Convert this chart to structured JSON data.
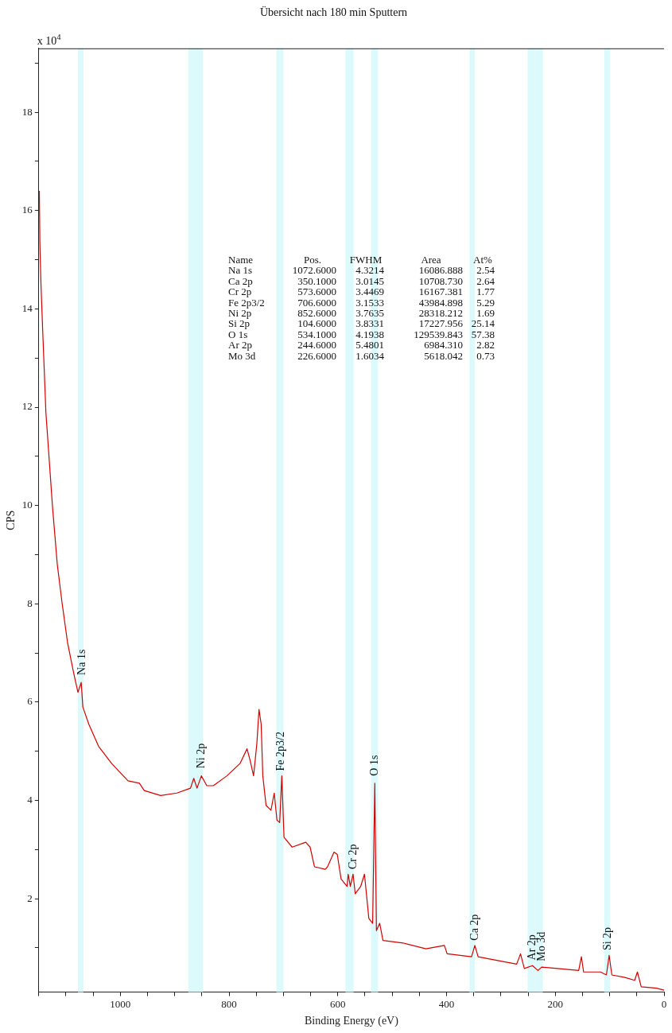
{
  "chart_data": {
    "type": "line",
    "title": "Übersicht nach 180 min Sputtern",
    "xlabel": "Binding Energy (eV)",
    "ylabel": "CPS",
    "xlim": [
      1150,
      0
    ],
    "ylim": [
      0.1,
      19.3
    ],
    "xticks": [
      {
        "value": 1150,
        "label": null
      },
      {
        "value": 1100,
        "label": null
      },
      {
        "value": 1050,
        "label": null
      },
      1000,
      {
        "value": 950,
        "label": null
      },
      {
        "value": 900,
        "label": null
      },
      {
        "value": 850,
        "label": null
      },
      800,
      {
        "value": 750,
        "label": null
      },
      {
        "value": 700,
        "label": null
      },
      {
        "value": 650,
        "label": null
      },
      600,
      {
        "value": 550,
        "label": null
      },
      {
        "value": 500,
        "label": null
      },
      {
        "value": 450,
        "label": null
      },
      400,
      {
        "value": 350,
        "label": null
      },
      {
        "value": 300,
        "label": null
      },
      {
        "value": 250,
        "label": null
      },
      200,
      {
        "value": 150,
        "label": null
      },
      {
        "value": 100,
        "label": null
      },
      {
        "value": 50,
        "label": null
      },
      0
    ],
    "yticks": [
      {
        "value": 1,
        "label": null
      },
      2,
      {
        "value": 3,
        "label": null
      },
      4,
      {
        "value": 5,
        "label": null
      },
      6,
      {
        "value": 7,
        "label": null
      },
      8,
      {
        "value": 9,
        "label": null
      },
      10,
      {
        "value": 11,
        "label": null
      },
      12,
      {
        "value": 13,
        "label": null
      },
      14,
      {
        "value": 15,
        "label": null
      },
      16,
      {
        "value": 17,
        "label": null
      },
      18,
      {
        "value": 19,
        "label": null
      }
    ],
    "grid": false,
    "legend": false,
    "marker": "none",
    "line_style": "solid",
    "x": [
      1149,
      1148,
      1146,
      1143,
      1137,
      1125,
      1116,
      1107,
      1097,
      1086,
      1078,
      1072,
      1069,
      1058,
      1040,
      1016,
      986,
      965,
      956,
      926,
      896,
      871,
      865,
      859,
      851,
      841,
      829,
      804,
      780,
      767,
      761,
      755,
      749,
      745,
      741,
      738,
      732,
      723,
      717,
      712,
      707,
      703,
      699,
      684,
      659,
      651,
      643,
      623,
      619,
      607,
      601,
      594,
      583,
      581,
      577,
      572,
      568,
      558,
      551,
      543,
      536,
      532,
      529,
      523,
      517,
      480,
      438,
      404,
      399,
      354,
      348,
      342,
      304,
      271,
      264,
      257,
      242,
      232,
      225,
      196,
      157,
      152,
      148,
      117,
      106,
      101,
      96,
      72,
      54,
      49,
      42,
      14,
      0
    ],
    "series": [
      {
        "color": "#d40000",
        "values": [
          16.4,
          15.3,
          14.5,
          13.6,
          11.9,
          10.0,
          8.8,
          8.0,
          7.2,
          6.6,
          6.2,
          6.4,
          5.9,
          5.55,
          5.1,
          4.75,
          4.4,
          4.35,
          4.2,
          4.1,
          4.15,
          4.25,
          4.45,
          4.25,
          4.5,
          4.3,
          4.3,
          4.5,
          4.75,
          5.05,
          4.8,
          4.5,
          5.15,
          5.85,
          5.55,
          4.5,
          3.9,
          3.8,
          4.15,
          3.6,
          3.55,
          4.5,
          3.25,
          3.05,
          3.15,
          3.05,
          2.65,
          2.6,
          2.65,
          2.95,
          2.9,
          2.4,
          2.25,
          2.5,
          2.25,
          2.5,
          2.1,
          2.25,
          2.5,
          1.6,
          1.5,
          4.35,
          1.35,
          1.5,
          1.15,
          1.1,
          0.98,
          1.05,
          0.88,
          0.82,
          1.05,
          0.82,
          0.74,
          0.67,
          0.88,
          0.58,
          0.64,
          0.54,
          0.61,
          0.58,
          0.54,
          0.82,
          0.51,
          0.51,
          0.45,
          0.85,
          0.45,
          0.4,
          0.34,
          0.51,
          0.21,
          0.18,
          0.14
        ]
      }
    ],
    "bands": [
      {
        "axis": "x",
        "from": 1078,
        "to": 1068,
        "color": "#dcfafc"
      },
      {
        "axis": "x",
        "from": 875,
        "to": 848,
        "color": "#dcfafc"
      },
      {
        "axis": "x",
        "from": 713,
        "to": 700,
        "color": "#dcfafc"
      },
      {
        "axis": "x",
        "from": 586,
        "to": 571,
        "color": "#dcfafc"
      },
      {
        "axis": "x",
        "from": 539,
        "to": 526,
        "color": "#dcfafc"
      },
      {
        "axis": "x",
        "from": 358,
        "to": 348,
        "color": "#dcfafc"
      },
      {
        "axis": "x",
        "from": 251,
        "to": 236,
        "color": "#dcfafc"
      },
      {
        "axis": "x",
        "from": 236,
        "to": 223,
        "color": "#dcfafc"
      },
      {
        "axis": "x",
        "from": 110,
        "to": 99,
        "color": "#dcfafc"
      }
    ],
    "annotations": [
      "x 10$^{4}$",
      {
        "text": "Na 1s",
        "x": 1072.6,
        "y": 6.55
      },
      {
        "text": "Ni 2p",
        "x": 852.6,
        "y": 4.65
      },
      {
        "text": "Fe 2p3/2",
        "x": 706.6,
        "y": 4.6
      },
      {
        "text": "Cr 2p",
        "x": 573.6,
        "y": 2.6
      },
      {
        "text": "O 1s",
        "x": 534.1,
        "y": 4.5
      },
      {
        "text": "Ca 2p",
        "x": 350.1,
        "y": 1.15
      },
      {
        "text": "Ar 2p",
        "x": 244.6,
        "y": 0.75
      },
      {
        "text": "Mo 3d",
        "x": 226.6,
        "y": 0.73
      },
      {
        "text": "Si 2p",
        "x": 104.6,
        "y": 0.95
      },
      "Name",
      "Pos.",
      "FWHM",
      "Area",
      "At%",
      "Na 1s",
      "1072.6000",
      "4.3214",
      "16086.888",
      "2.54",
      "Ca 2p",
      "350.1000",
      "3.0145",
      "10708.730",
      "2.64",
      "Cr 2p",
      "573.6000",
      "3.4469",
      "16167.381",
      "1.77",
      "Fe 2p3/2",
      "706.6000",
      "3.1533",
      "43984.898",
      "5.29",
      "Ni 2p",
      "852.6000",
      "3.7635",
      "28318.212",
      "1.69",
      "Si 2p",
      "104.6000",
      "3.8331",
      "17227.956",
      "25.14",
      "O 1s",
      "534.1000",
      "4.1938",
      "129539.843",
      "57.38",
      "Ar 2p",
      "244.6000",
      "5.4801",
      "6984.310",
      "2.82",
      "Mo 3d",
      "226.6000",
      "1.6034",
      "5618.042",
      "0.73"
    ]
  }
}
